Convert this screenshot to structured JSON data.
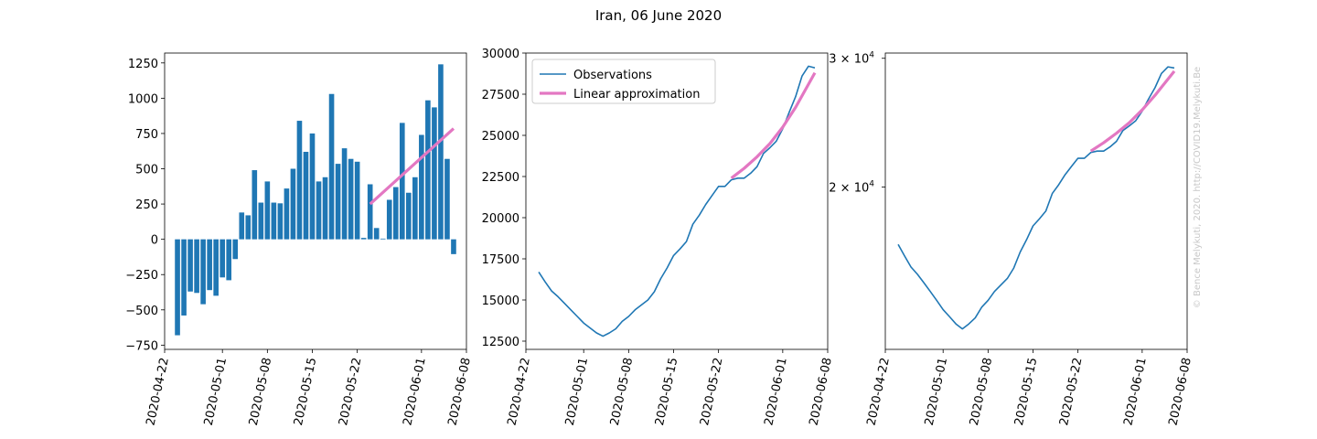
{
  "figure": {
    "title": "Iran, 06 June 2020",
    "watermark": "© Bence Melykuti, 2020. http://COVID19.Melykuti.Be"
  },
  "colors": {
    "observations": "#1f77b4",
    "approximation": "#e377c2"
  },
  "date_ticks": [
    "2020-04-22",
    "2020-05-01",
    "2020-05-08",
    "2020-05-15",
    "2020-05-22",
    "2020-06-01",
    "2020-06-08"
  ],
  "chart_data": [
    {
      "type": "bar",
      "title": "",
      "xlabel": "",
      "ylabel": "",
      "x_start": "2020-04-24",
      "x_end": "2020-06-06",
      "xlim": [
        "2020-04-22",
        "2020-06-08"
      ],
      "ylim": [
        -780,
        1320
      ],
      "yticks": [
        -750,
        -500,
        -250,
        0,
        250,
        500,
        750,
        1000,
        1250
      ],
      "ytick_labels": [
        "−750",
        "−500",
        "−250",
        "0",
        "250",
        "500",
        "750",
        "1000",
        "1250"
      ],
      "series": [
        {
          "name": "",
          "values": [
            -680,
            -540,
            -370,
            -380,
            -460,
            -360,
            -400,
            -270,
            -290,
            -140,
            190,
            170,
            490,
            260,
            410,
            260,
            255,
            360,
            500,
            840,
            620,
            750,
            410,
            440,
            1030,
            535,
            645,
            570,
            550,
            10,
            390,
            80,
            5,
            280,
            370,
            825,
            330,
            440,
            740,
            985,
            935,
            1240,
            570,
            -105
          ]
        },
        {
          "name": "",
          "x": [
            "2020-05-24",
            "2020-06-06"
          ],
          "values": [
            250,
            785
          ]
        }
      ]
    },
    {
      "type": "line",
      "title": "",
      "xlabel": "",
      "ylabel": "",
      "x_start": "2020-04-24",
      "x_end": "2020-06-06",
      "xlim": [
        "2020-04-22",
        "2020-06-08"
      ],
      "ylim": [
        12000,
        30000
      ],
      "yticks": [
        12500,
        15000,
        17500,
        20000,
        22500,
        25000,
        27500,
        30000
      ],
      "ytick_labels": [
        "12500",
        "15000",
        "17500",
        "20000",
        "22500",
        "25000",
        "27500",
        "30000"
      ],
      "legend": {
        "placement": "upper left",
        "entries": [
          "Observations",
          "Linear approximation"
        ]
      },
      "series": [
        {
          "name": "Observations",
          "values": [
            16700,
            16100,
            15550,
            15200,
            14800,
            14400,
            14000,
            13600,
            13300,
            13000,
            12800,
            13000,
            13250,
            13700,
            14000,
            14400,
            14700,
            15000,
            15500,
            16300,
            16950,
            17700,
            18100,
            18550,
            19600,
            20150,
            20800,
            21350,
            21900,
            21900,
            22300,
            22400,
            22400,
            22700,
            23100,
            23900,
            24250,
            24650,
            25400,
            26400,
            27350,
            28600,
            29200,
            29100
          ]
        },
        {
          "name": "Linear approximation",
          "x": [
            "2020-05-24",
            "2020-05-26",
            "2020-05-28",
            "2020-05-30",
            "2020-06-01",
            "2020-06-03",
            "2020-06-06"
          ],
          "values": [
            22400,
            23000,
            23700,
            24500,
            25500,
            26700,
            28800
          ]
        }
      ]
    },
    {
      "type": "line",
      "title": "",
      "xlabel": "",
      "ylabel": "",
      "scale": "log",
      "x_start": "2020-04-24",
      "x_end": "2020-06-06",
      "xlim": [
        "2020-04-22",
        "2020-06-08"
      ],
      "ylim": [
        12000,
        30500
      ],
      "yticks": [
        20000,
        30000
      ],
      "ytick_labels": [
        {
          "base": "2 × 10",
          "exp": "4"
        },
        {
          "base": "3 × 10",
          "exp": "4"
        }
      ],
      "series": [
        {
          "name": "",
          "values": [
            16700,
            16100,
            15550,
            15200,
            14800,
            14400,
            14000,
            13600,
            13300,
            13000,
            12800,
            13000,
            13250,
            13700,
            14000,
            14400,
            14700,
            15000,
            15500,
            16300,
            16950,
            17700,
            18100,
            18550,
            19600,
            20150,
            20800,
            21350,
            21900,
            21900,
            22300,
            22400,
            22400,
            22700,
            23100,
            23900,
            24250,
            24650,
            25400,
            26400,
            27350,
            28600,
            29200,
            29100
          ]
        },
        {
          "name": "",
          "x": [
            "2020-05-24",
            "2020-05-26",
            "2020-05-28",
            "2020-05-30",
            "2020-06-01",
            "2020-06-03",
            "2020-06-06"
          ],
          "values": [
            22400,
            23000,
            23700,
            24500,
            25500,
            26700,
            28800
          ]
        }
      ]
    }
  ]
}
